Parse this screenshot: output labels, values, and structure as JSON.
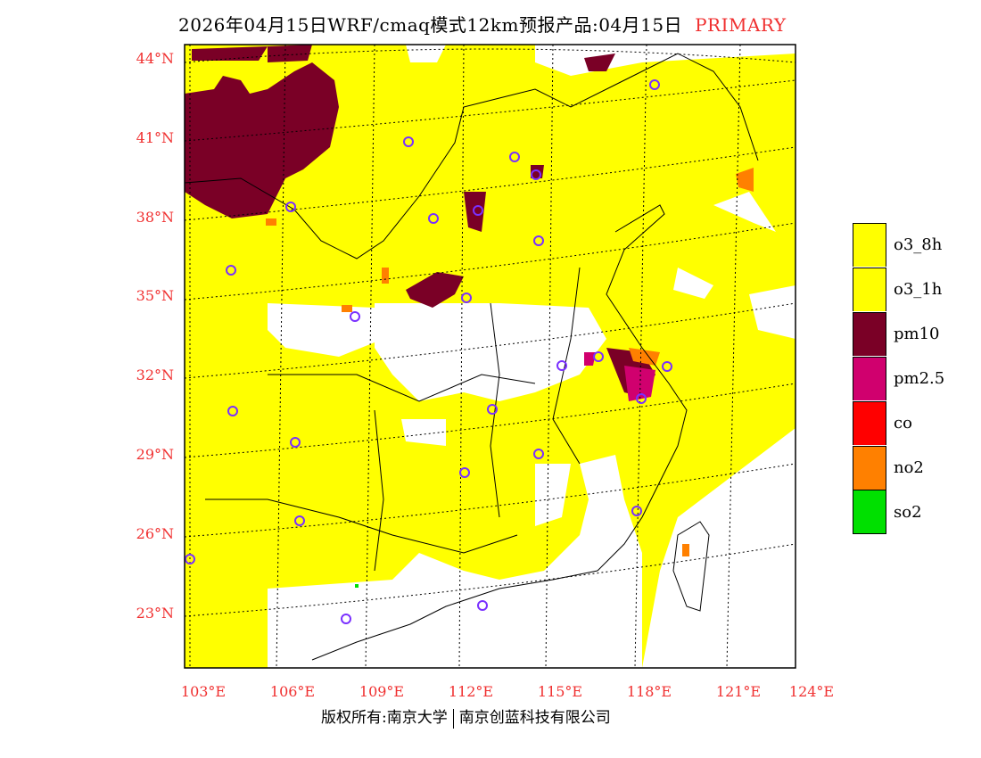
{
  "title": {
    "main": "2026年04月15日WRF/cmaq模式12km预报产品:04月15日",
    "tag": "PRIMARY"
  },
  "latitude_labels": [
    "44°N",
    "41°N",
    "38°N",
    "35°N",
    "32°N",
    "29°N",
    "26°N",
    "23°N"
  ],
  "longitude_labels": [
    "103°E",
    "106°E",
    "109°E",
    "112°E",
    "115°E",
    "118°E",
    "121°E",
    "124°E"
  ],
  "legend": [
    {
      "label": "o3_8h",
      "color": "#ffff00"
    },
    {
      "label": "o3_1h",
      "color": "#ffff00"
    },
    {
      "label": "pm10",
      "color": "#7a0026"
    },
    {
      "label": "pm2.5",
      "color": "#d0006e"
    },
    {
      "label": "co",
      "color": "#ff0000"
    },
    {
      "label": "no2",
      "color": "#ff8000"
    },
    {
      "label": "so2",
      "color": "#00e000"
    }
  ],
  "footer": {
    "left": "版权所有:南京大学",
    "right": "南京创蓝科技有限公司"
  }
}
